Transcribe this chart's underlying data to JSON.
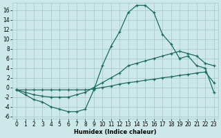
{
  "xlabel": "Humidex (Indice chaleur)",
  "background_color": "#cce8e8",
  "grid_color": "#aacccc",
  "line_color": "#1a6b5a",
  "xlim": [
    -0.5,
    23.5
  ],
  "ylim": [
    -6.5,
    17.5
  ],
  "xticks": [
    0,
    1,
    2,
    3,
    4,
    5,
    6,
    7,
    8,
    9,
    10,
    11,
    12,
    13,
    14,
    15,
    16,
    17,
    18,
    19,
    20,
    21,
    22,
    23
  ],
  "yticks": [
    -6,
    -4,
    -2,
    0,
    2,
    4,
    6,
    8,
    10,
    12,
    14,
    16
  ],
  "line1_x": [
    0,
    1,
    2,
    3,
    4,
    5,
    6,
    7,
    8,
    9,
    10,
    11,
    12,
    13,
    14,
    15,
    16,
    17,
    18,
    19,
    20,
    21,
    22,
    23
  ],
  "line1_y": [
    -0.5,
    -1.5,
    -2.5,
    -3.0,
    -4.0,
    -4.5,
    -5.0,
    -5.0,
    -4.5,
    -0.5,
    4.5,
    8.5,
    11.5,
    15.5,
    17.0,
    17.0,
    15.5,
    11.0,
    9.0,
    6.0,
    6.5,
    4.5,
    4.0,
    -1.0
  ],
  "line2_x": [
    0,
    1,
    2,
    3,
    4,
    5,
    6,
    7,
    8,
    9,
    10,
    11,
    12,
    13,
    14,
    15,
    16,
    17,
    18,
    19,
    20,
    21,
    22,
    23
  ],
  "line2_y": [
    -0.5,
    -1.0,
    -1.5,
    -1.8,
    -2.0,
    -2.0,
    -2.0,
    -1.5,
    -1.0,
    0.0,
    1.0,
    2.0,
    3.0,
    4.5,
    5.0,
    5.5,
    6.0,
    6.5,
    7.0,
    7.5,
    7.0,
    6.5,
    5.0,
    4.5
  ],
  "line3_x": [
    0,
    1,
    2,
    3,
    4,
    5,
    6,
    7,
    8,
    9,
    10,
    11,
    12,
    13,
    14,
    15,
    16,
    17,
    18,
    19,
    20,
    21,
    22,
    23
  ],
  "line3_y": [
    -0.5,
    -0.5,
    -0.5,
    -0.5,
    -0.5,
    -0.5,
    -0.5,
    -0.5,
    -0.5,
    -0.3,
    0.0,
    0.3,
    0.7,
    1.0,
    1.2,
    1.5,
    1.7,
    2.0,
    2.2,
    2.5,
    2.7,
    3.0,
    3.2,
    1.0
  ]
}
